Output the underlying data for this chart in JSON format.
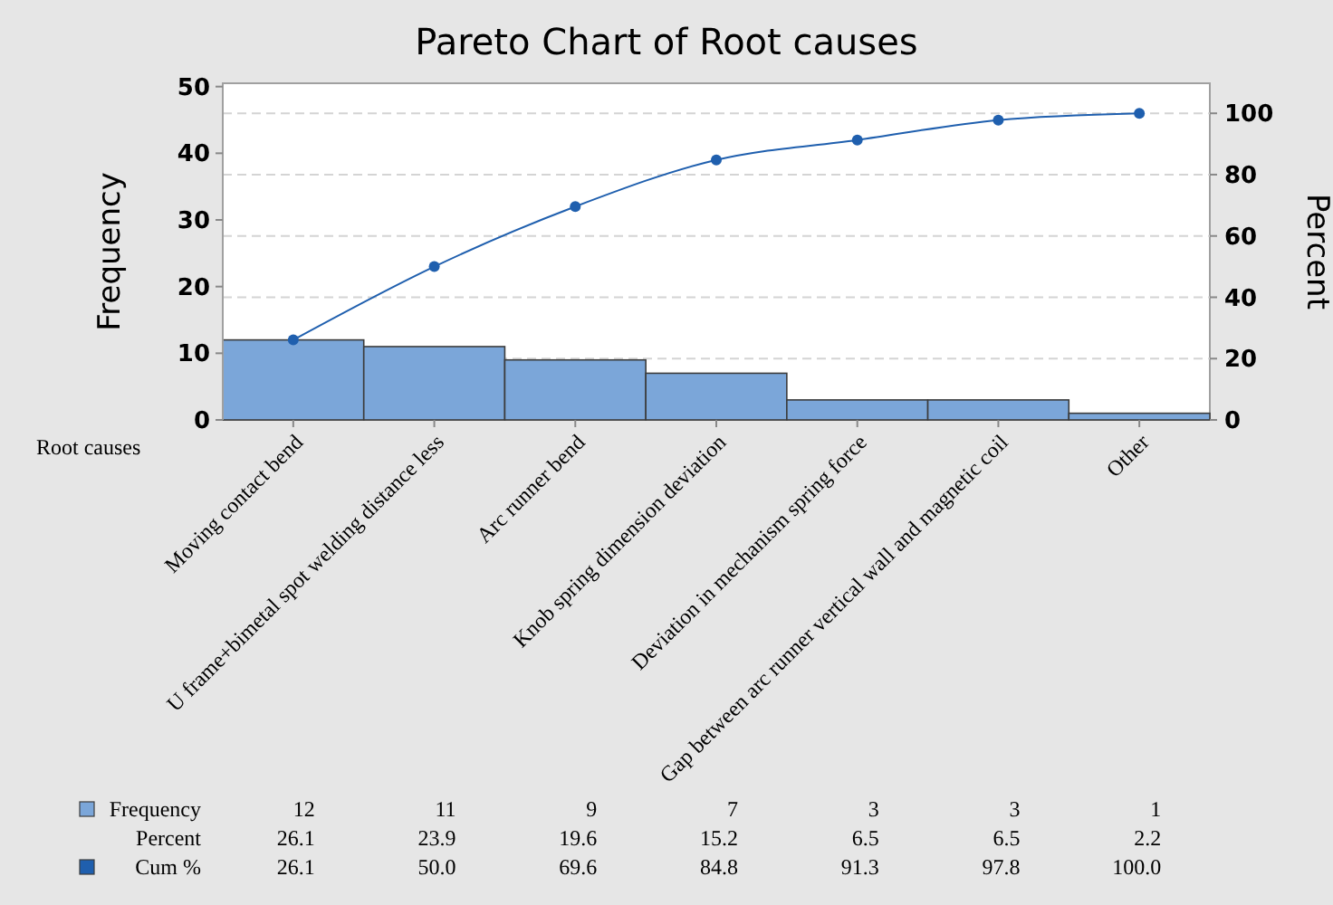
{
  "chart_data": {
    "type": "bar",
    "title": "Pareto Chart of Root causes",
    "xlabel": "Root causes",
    "ylabel": "Frequency",
    "y2label": "Percent",
    "categories": [
      "Moving contact bend",
      "U frame+bimetal spot welding distance less",
      "Arc runner bend",
      "Knob spring dimension deviation",
      "Deviation in mechanism spring force",
      "Gap between arc runner vertical wall and magnetic coil",
      "Other"
    ],
    "series": [
      {
        "name": "Frequency",
        "color": "#7ba6d9",
        "values": [
          12,
          11,
          9,
          7,
          3,
          3,
          1
        ]
      },
      {
        "name": "Cum %",
        "type": "line",
        "axis": "y2",
        "color": "#1f5fae",
        "marker": "circle",
        "values": [
          26.1,
          50.0,
          69.6,
          84.8,
          91.3,
          97.8,
          100.0
        ],
        "value_labels": [
          "26.1",
          "50.0",
          "69.6",
          "84.8",
          "91.3",
          "97.8",
          "100.0"
        ]
      }
    ],
    "ylim": [
      0,
      50.5
    ],
    "yticks": [
      0,
      10,
      20,
      30,
      40,
      50
    ],
    "y2lim": [
      0,
      109.8
    ],
    "y2ticks": [
      0,
      20,
      40,
      60,
      80,
      100
    ],
    "annotations": [
      "Percent",
      "26.1",
      "23.9",
      "19.6",
      "15.2",
      "6.5",
      "6.5",
      "2.2"
    ],
    "grid": true,
    "data_labels": true,
    "legend": "bottom left"
  }
}
